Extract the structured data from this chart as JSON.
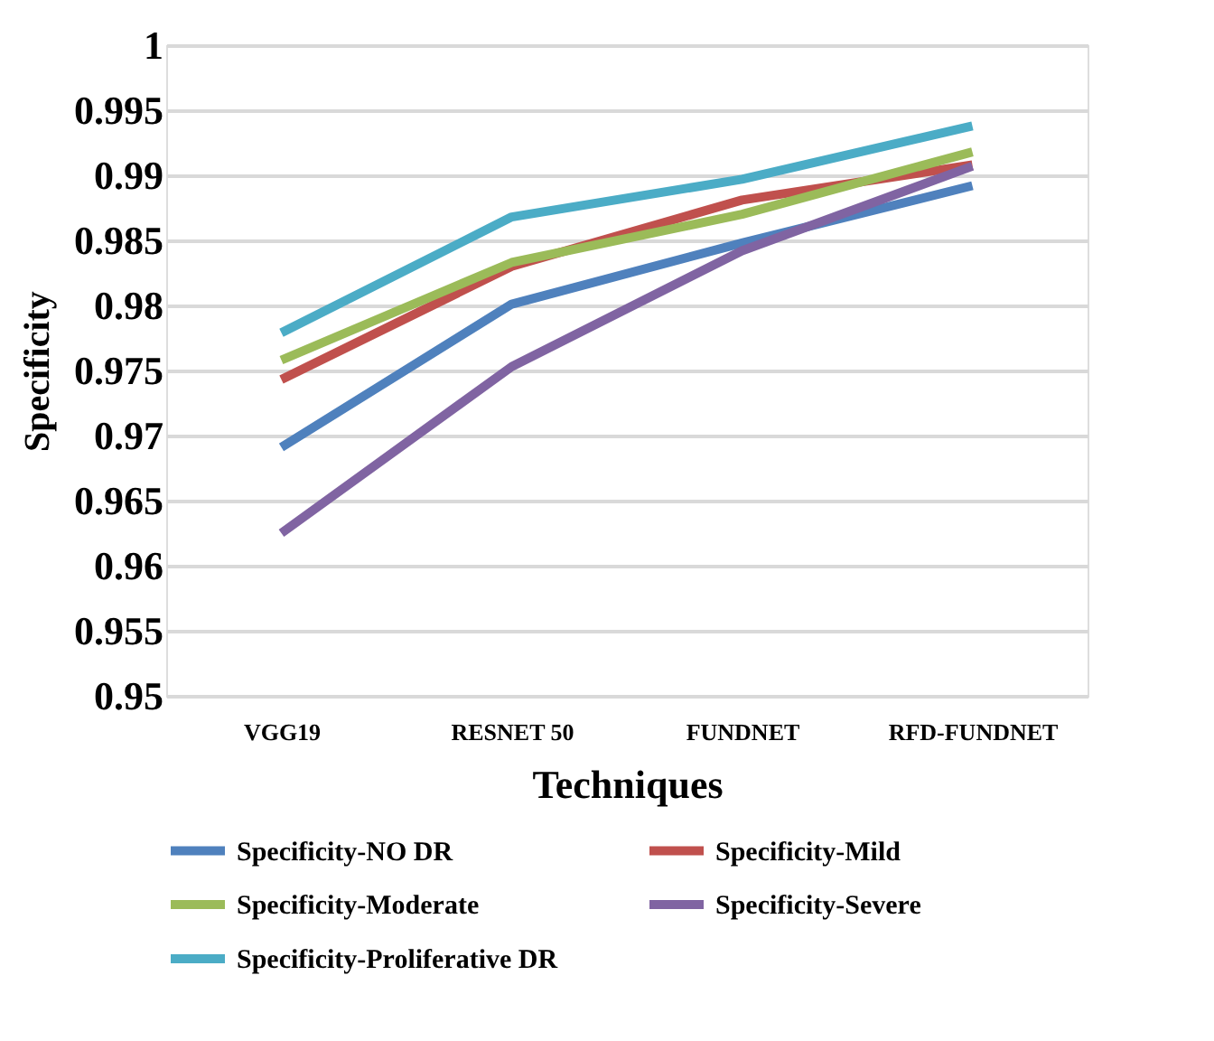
{
  "chart_data": {
    "type": "line",
    "xlabel": "Techniques",
    "ylabel": "Specificity",
    "categories": [
      "VGG19",
      "RESNET 50",
      "FUNDNET",
      "RFD-FUNDNET"
    ],
    "series": [
      {
        "name": "Specificity-NO DR",
        "color": "#4f81bd",
        "values": [
          0.9691,
          0.9801,
          0.9848,
          0.9892
        ]
      },
      {
        "name": "Specificity-Mild",
        "color": "#c0504d",
        "values": [
          0.9743,
          0.983,
          0.9881,
          0.9908
        ]
      },
      {
        "name": "Specificity-Moderate",
        "color": "#9bbb59",
        "values": [
          0.9758,
          0.9833,
          0.987,
          0.9918
        ]
      },
      {
        "name": "Specificity-Severe",
        "color": "#8064a2",
        "values": [
          0.9625,
          0.9753,
          0.9842,
          0.9907
        ]
      },
      {
        "name": "Specificity-Proliferative DR",
        "color": "#4bacc6",
        "values": [
          0.9779,
          0.9868,
          0.9897,
          0.9938
        ]
      }
    ],
    "ylim": [
      0.95,
      1
    ],
    "yticks": [
      0.95,
      0.955,
      0.96,
      0.965,
      0.97,
      0.975,
      0.98,
      0.985,
      0.99,
      0.995,
      1
    ],
    "grid": "y",
    "legend": "bottom",
    "marker": "none",
    "line_style": "solid"
  }
}
